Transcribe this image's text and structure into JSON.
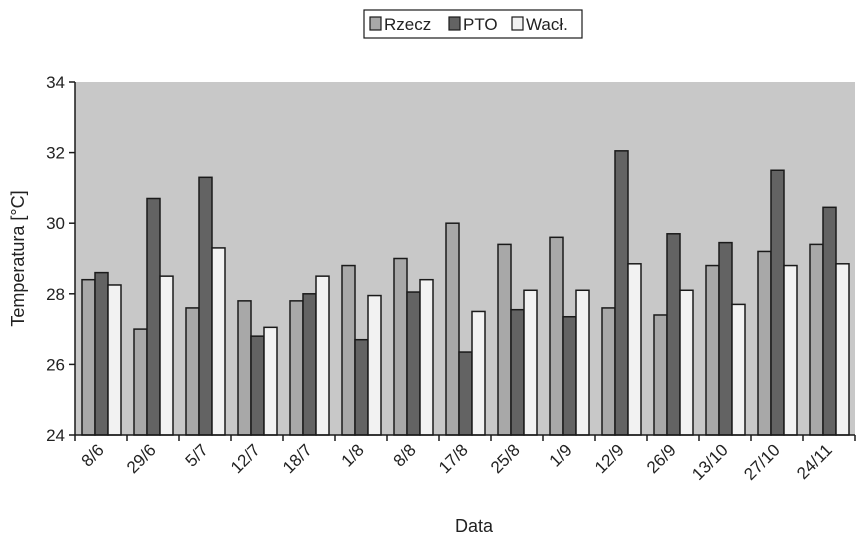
{
  "chart_data": {
    "type": "bar",
    "xlabel": "Data",
    "ylabel": "Temperatura [°C]",
    "ylim": [
      24,
      34
    ],
    "yticks": [
      24,
      26,
      28,
      30,
      32,
      34
    ],
    "grid": false,
    "legend_position": "top-center",
    "categories": [
      "8/6",
      "29/6",
      "5/7",
      "12/7",
      "18/7",
      "1/8",
      "8/8",
      "17/8",
      "25/8",
      "1/9",
      "12/9",
      "26/9",
      "13/10",
      "27/10",
      "24/11"
    ],
    "series": [
      {
        "name": "Rzecz",
        "color": "#a8a8a8",
        "values": [
          28.4,
          27.0,
          27.6,
          27.8,
          27.8,
          28.8,
          29.0,
          30.0,
          29.4,
          29.6,
          27.6,
          27.4,
          28.8,
          29.2,
          29.4
        ]
      },
      {
        "name": "PTO",
        "color": "#636363",
        "values": [
          28.6,
          30.7,
          31.3,
          26.8,
          28.0,
          26.7,
          28.05,
          26.35,
          27.55,
          27.35,
          32.05,
          29.7,
          29.45,
          31.5,
          30.45
        ]
      },
      {
        "name": "Wacł.",
        "color": "#f2f2f2",
        "values": [
          28.25,
          28.5,
          29.3,
          27.05,
          28.5,
          27.95,
          28.4,
          27.5,
          28.1,
          28.1,
          28.85,
          28.1,
          27.7,
          28.8,
          28.85
        ]
      }
    ],
    "plot_background": "#c8c8c8"
  }
}
